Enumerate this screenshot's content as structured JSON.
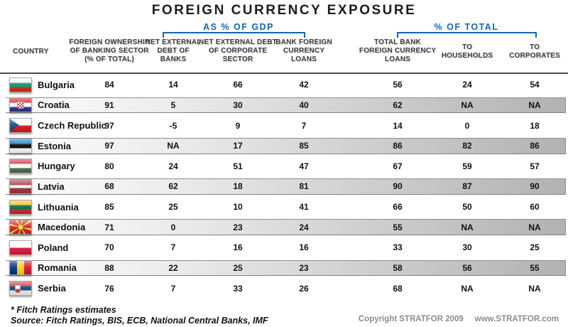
{
  "title": "FOREIGN CURRENCY EXPOSURE",
  "colors": {
    "accent_blue": "#1666AD",
    "stripe_gray": "#b2b2b2"
  },
  "group_headers": {
    "gdp": "AS % OF GDP",
    "total": "% OF TOTAL"
  },
  "headers": {
    "country": "COUNTRY",
    "foreign_ownership": "FOREIGN OWNERSHIP\nOF BANKING SECTOR\n(% OF TOTAL)",
    "net_ext_debt_banks": "NET EXTERNAL\nDEBT OF\nBANKS",
    "net_ext_debt_corp": "NET EXTERNAL DEBT\nOF CORPORATE\nSECTOR",
    "bank_fx_loans": "BANK FOREIGN\nCURRENCY\nLOANS",
    "total_bank_fx_loans": "TOTAL BANK\nFOREIGN CURRENCY\nLOANS",
    "to_households": "TO\nHOUSEHOLDS",
    "to_corporates": "TO\nCORPORATES"
  },
  "chart_data": {
    "type": "table",
    "title": "FOREIGN CURRENCY EXPOSURE",
    "column_groups": [
      {
        "label": "AS % OF GDP",
        "columns": [
          "NET EXTERNAL DEBT OF BANKS",
          "NET EXTERNAL DEBT OF CORPORATE SECTOR",
          "BANK FOREIGN CURRENCY LOANS"
        ]
      },
      {
        "label": "% OF TOTAL",
        "columns": [
          "TOTAL BANK FOREIGN CURRENCY LOANS",
          "TO HOUSEHOLDS",
          "TO CORPORATES"
        ]
      }
    ],
    "columns": [
      "COUNTRY",
      "FOREIGN OWNERSHIP OF BANKING SECTOR (% OF TOTAL)",
      "NET EXTERNAL DEBT OF BANKS",
      "NET EXTERNAL DEBT OF CORPORATE SECTOR",
      "BANK FOREIGN CURRENCY LOANS",
      "TOTAL BANK FOREIGN CURRENCY LOANS",
      "TO HOUSEHOLDS",
      "TO CORPORATES"
    ],
    "rows": [
      {
        "country": "Bulgaria",
        "flag": "bulgaria",
        "values": [
          84,
          14,
          66,
          42,
          56,
          24,
          54
        ]
      },
      {
        "country": "Croatia",
        "flag": "croatia",
        "values": [
          91,
          5,
          30,
          40,
          62,
          "NA",
          "NA"
        ]
      },
      {
        "country": "Czech Republic",
        "flag": "czech-republic",
        "values": [
          97,
          -5,
          9,
          7,
          14,
          0,
          18
        ]
      },
      {
        "country": "Estonia",
        "flag": "estonia",
        "values": [
          97,
          "NA",
          17,
          85,
          86,
          82,
          86
        ]
      },
      {
        "country": "Hungary",
        "flag": "hungary",
        "values": [
          80,
          24,
          51,
          47,
          67,
          59,
          57
        ]
      },
      {
        "country": "Latvia",
        "flag": "latvia",
        "values": [
          68,
          62,
          18,
          81,
          90,
          87,
          90
        ]
      },
      {
        "country": "Lithuania",
        "flag": "lithuania",
        "values": [
          85,
          25,
          10,
          41,
          66,
          50,
          60
        ]
      },
      {
        "country": "Macedonia",
        "flag": "macedonia",
        "values": [
          71,
          0,
          23,
          24,
          55,
          "NA",
          "NA"
        ]
      },
      {
        "country": "Poland",
        "flag": "poland",
        "values": [
          70,
          7,
          16,
          16,
          33,
          30,
          25
        ]
      },
      {
        "country": "Romania",
        "flag": "romania",
        "values": [
          88,
          22,
          25,
          23,
          58,
          56,
          55
        ]
      },
      {
        "country": "Serbia",
        "flag": "serbia",
        "values": [
          76,
          7,
          33,
          26,
          68,
          "NA",
          "NA"
        ]
      }
    ]
  },
  "footnotes": {
    "estimate": "* Fitch Ratings estimates",
    "source": "Source: Fitch Ratings, BIS, ECB, National Central Banks, IMF"
  },
  "footer": {
    "copyright": "Copyright STRATFOR 2009",
    "website": "www.STRATFOR.com"
  }
}
